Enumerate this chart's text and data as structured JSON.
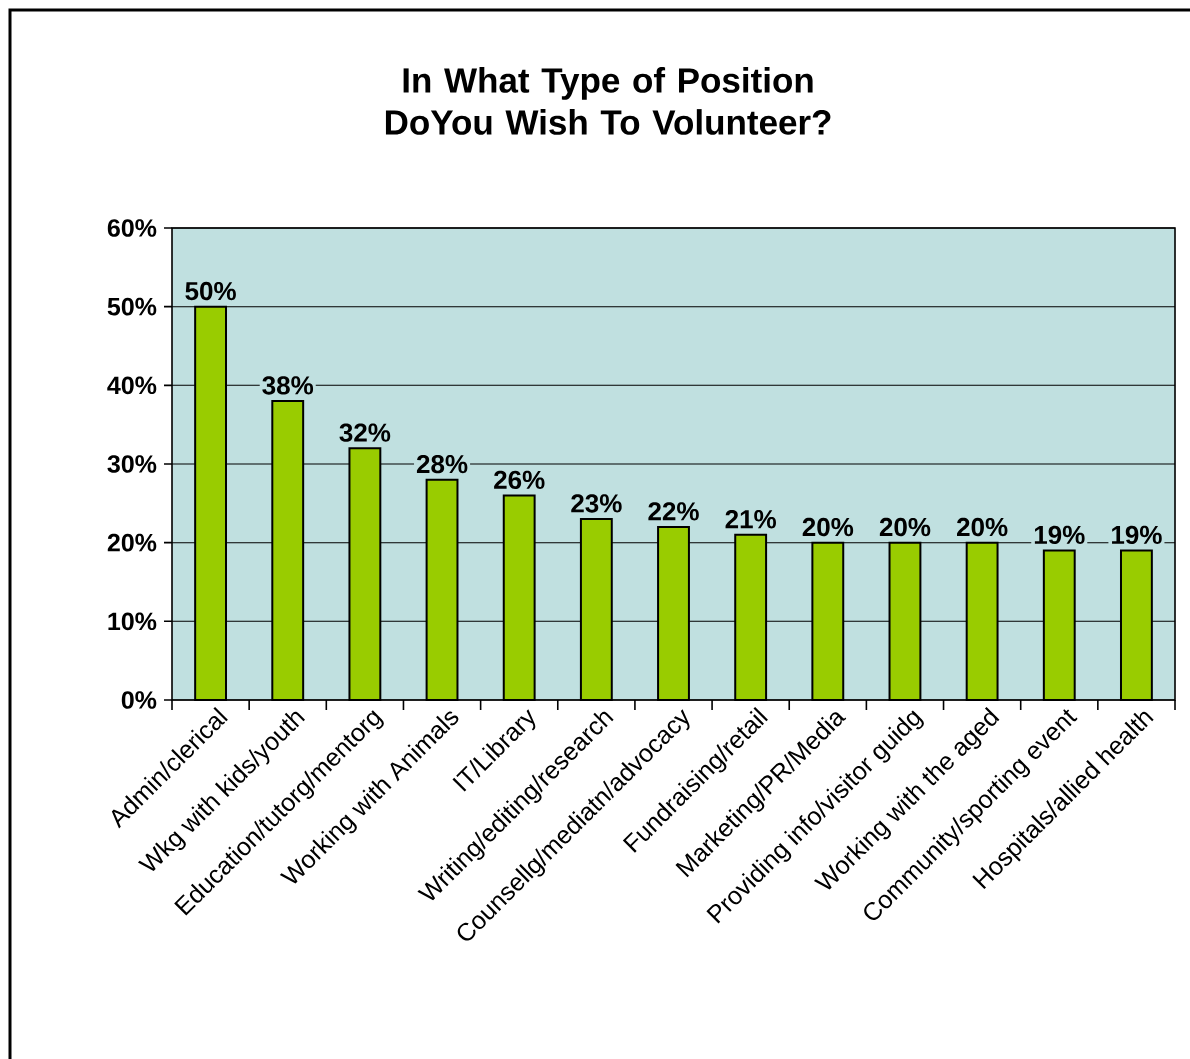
{
  "chart_data": {
    "type": "bar",
    "title": "In What Type of Position DoYou Wish To Volunteer?",
    "categories": [
      "Admin/clerical",
      "Wkg with kids/youth",
      "Education/tutorg/mentorg",
      "Working with Animals",
      "IT/Library",
      "Writing/editing/research",
      "Counsellg/mediatn/advocacy",
      "Fundraising/retail",
      "Marketing/PR/Media",
      "Providing info/visitor guidg",
      "Working with the aged",
      "Community/sporting event",
      "Hospitals/allied health"
    ],
    "values": [
      50,
      38,
      32,
      28,
      26,
      23,
      22,
      21,
      20,
      20,
      20,
      19,
      19
    ],
    "value_labels": [
      "50%",
      "38%",
      "32%",
      "28%",
      "26%",
      "23%",
      "22%",
      "21%",
      "20%",
      "20%",
      "20%",
      "19%",
      "19%"
    ],
    "color": "#99cc00",
    "ylim": [
      0,
      60
    ],
    "yticks": [
      {
        "value": 0,
        "label": "0%"
      },
      {
        "value": 10,
        "label": "10%"
      },
      {
        "value": 20,
        "label": "20%"
      },
      {
        "value": 30,
        "label": "30%"
      },
      {
        "value": 40,
        "label": "40%"
      },
      {
        "value": 50,
        "label": "50%"
      },
      {
        "value": 60,
        "label": "60%"
      }
    ],
    "grid": "y"
  }
}
